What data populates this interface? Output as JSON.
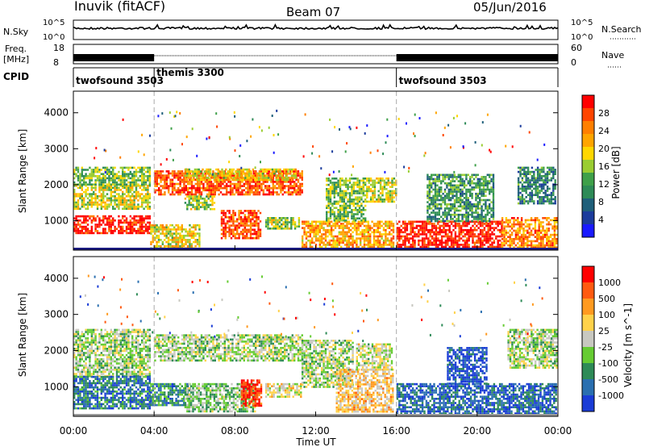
{
  "header": {
    "station": "Inuvik (fitACF)",
    "beam": "Beam 07",
    "date": "05/Jun/2016"
  },
  "top_panels": {
    "nsky_label": "N.Sky",
    "nsky_ticks": [
      "10^5",
      "10^0"
    ],
    "nsearch_label": "N.Search",
    "nsearch_ticks": [
      "10^5",
      "10^0"
    ],
    "freq_label": "Freq.",
    "freq_unit": "[MHz]",
    "freq_ticks": [
      "18",
      "8"
    ],
    "nave_label": "Nave",
    "nave_ticks": [
      "60",
      "0"
    ],
    "cpid_label": "CPID",
    "cpid_segments": [
      {
        "name": "twofsound 3503",
        "start_h": 0,
        "end_h": 4
      },
      {
        "name": "themis 3300",
        "start_h": 4,
        "end_h": 16
      },
      {
        "name": "twofsound 3503",
        "start_h": 16,
        "end_h": 24
      }
    ]
  },
  "time_axis": {
    "label": "Time UT",
    "ticks": [
      "00:00",
      "04:00",
      "08:00",
      "12:00",
      "16:00",
      "20:00",
      "00:00"
    ]
  },
  "chart_data": [
    {
      "type": "heatmap",
      "name": "power",
      "ylabel": "Slant Range [km]",
      "yticks": [
        "1000",
        "2000",
        "3000",
        "4000"
      ],
      "ylim": [
        180,
        4600
      ],
      "xlim_hours": [
        0,
        24
      ],
      "colorbar_label": "Power [dB]",
      "colorbar_ticks": [
        "4",
        "8",
        "12",
        "16",
        "20",
        "24",
        "28"
      ],
      "colors": [
        "#1a1aff",
        "#1c3c9c",
        "#1f5f7a",
        "#2e8b57",
        "#3fa04a",
        "#9acd32",
        "#ffd700",
        "#ffa500",
        "#ff7f00",
        "#ff4500",
        "#ff0000"
      ],
      "regions": [
        {
          "t0": 0.0,
          "t1": 3.8,
          "r0": 650,
          "r1": 1150,
          "v": 0.95
        },
        {
          "t0": 0.0,
          "t1": 3.8,
          "r0": 1300,
          "r1": 2000,
          "v": 0.55
        },
        {
          "t0": 0.0,
          "t1": 3.8,
          "r0": 2000,
          "r1": 2500,
          "v": 0.45
        },
        {
          "t0": 3.8,
          "t1": 6.2,
          "r0": 250,
          "r1": 900,
          "v": 0.6
        },
        {
          "t0": 4.0,
          "t1": 11.3,
          "r0": 1700,
          "r1": 2400,
          "v": 0.85
        },
        {
          "t0": 5.5,
          "t1": 11.0,
          "r0": 2100,
          "r1": 2450,
          "v": 0.6
        },
        {
          "t0": 5.5,
          "t1": 7.0,
          "r0": 1300,
          "r1": 1700,
          "v": 0.5
        },
        {
          "t0": 7.3,
          "t1": 9.3,
          "r0": 500,
          "r1": 1300,
          "v": 0.85
        },
        {
          "t0": 9.5,
          "t1": 11.2,
          "r0": 800,
          "r1": 1100,
          "v": 0.5
        },
        {
          "t0": 11.3,
          "t1": 15.9,
          "r0": 250,
          "r1": 1000,
          "v": 0.7
        },
        {
          "t0": 12.5,
          "t1": 14.5,
          "r0": 1000,
          "r1": 2200,
          "v": 0.45
        },
        {
          "t0": 14.5,
          "t1": 16.0,
          "r0": 1500,
          "r1": 2200,
          "v": 0.55
        },
        {
          "t0": 16.0,
          "t1": 21.2,
          "r0": 200,
          "r1": 1000,
          "v": 0.95
        },
        {
          "t0": 17.5,
          "t1": 20.8,
          "r0": 1000,
          "r1": 2300,
          "v": 0.35
        },
        {
          "t0": 21.2,
          "t1": 23.9,
          "r0": 250,
          "r1": 1100,
          "v": 0.75
        },
        {
          "t0": 22.0,
          "t1": 23.9,
          "r0": 1500,
          "r1": 2500,
          "v": 0.3
        }
      ]
    },
    {
      "type": "heatmap",
      "name": "velocity",
      "ylabel": "Slant Range [km]",
      "yticks": [
        "1000",
        "2000",
        "3000",
        "4000"
      ],
      "ylim": [
        180,
        4600
      ],
      "xlim_hours": [
        0,
        24
      ],
      "colorbar_label": "Velocity [m s^-1]",
      "colorbar_ticks": [
        "1000",
        "500",
        "100",
        "25",
        "-25",
        "-100",
        "-500",
        "-1000"
      ],
      "colors": [
        "#1a3cd6",
        "#2a6fb0",
        "#2e8b57",
        "#66cc33",
        "#c8c8c0",
        "#ffd24a",
        "#ff9a20",
        "#ff5a10",
        "#ff0000"
      ],
      "regions": [
        {
          "t0": 0.0,
          "t1": 3.8,
          "r0": 1300,
          "r1": 2600,
          "v": 0.45
        },
        {
          "t0": 0.0,
          "t1": 3.8,
          "r0": 400,
          "r1": 1300,
          "v": 0.2
        },
        {
          "t0": 3.8,
          "t1": 5.8,
          "r0": 500,
          "r1": 1100,
          "v": 0.25
        },
        {
          "t0": 4.0,
          "t1": 11.3,
          "r0": 1700,
          "r1": 2450,
          "v": 0.45
        },
        {
          "t0": 5.5,
          "t1": 9.0,
          "r0": 300,
          "r1": 1100,
          "v": 0.4
        },
        {
          "t0": 8.3,
          "t1": 9.3,
          "r0": 500,
          "r1": 1200,
          "v": 0.9
        },
        {
          "t0": 9.5,
          "t1": 11.3,
          "r0": 700,
          "r1": 1100,
          "v": 0.55
        },
        {
          "t0": 11.3,
          "t1": 13.8,
          "r0": 1000,
          "r1": 2300,
          "v": 0.45
        },
        {
          "t0": 13.0,
          "t1": 15.8,
          "r0": 300,
          "r1": 1500,
          "v": 0.62
        },
        {
          "t0": 14.0,
          "t1": 15.8,
          "r0": 1500,
          "r1": 2200,
          "v": 0.5
        },
        {
          "t0": 16.0,
          "t1": 23.9,
          "r0": 200,
          "r1": 1100,
          "v": 0.15
        },
        {
          "t0": 18.5,
          "t1": 20.5,
          "r0": 1100,
          "r1": 2100,
          "v": 0.1
        },
        {
          "t0": 21.5,
          "t1": 23.9,
          "r0": 1500,
          "r1": 2600,
          "v": 0.45
        }
      ]
    }
  ]
}
